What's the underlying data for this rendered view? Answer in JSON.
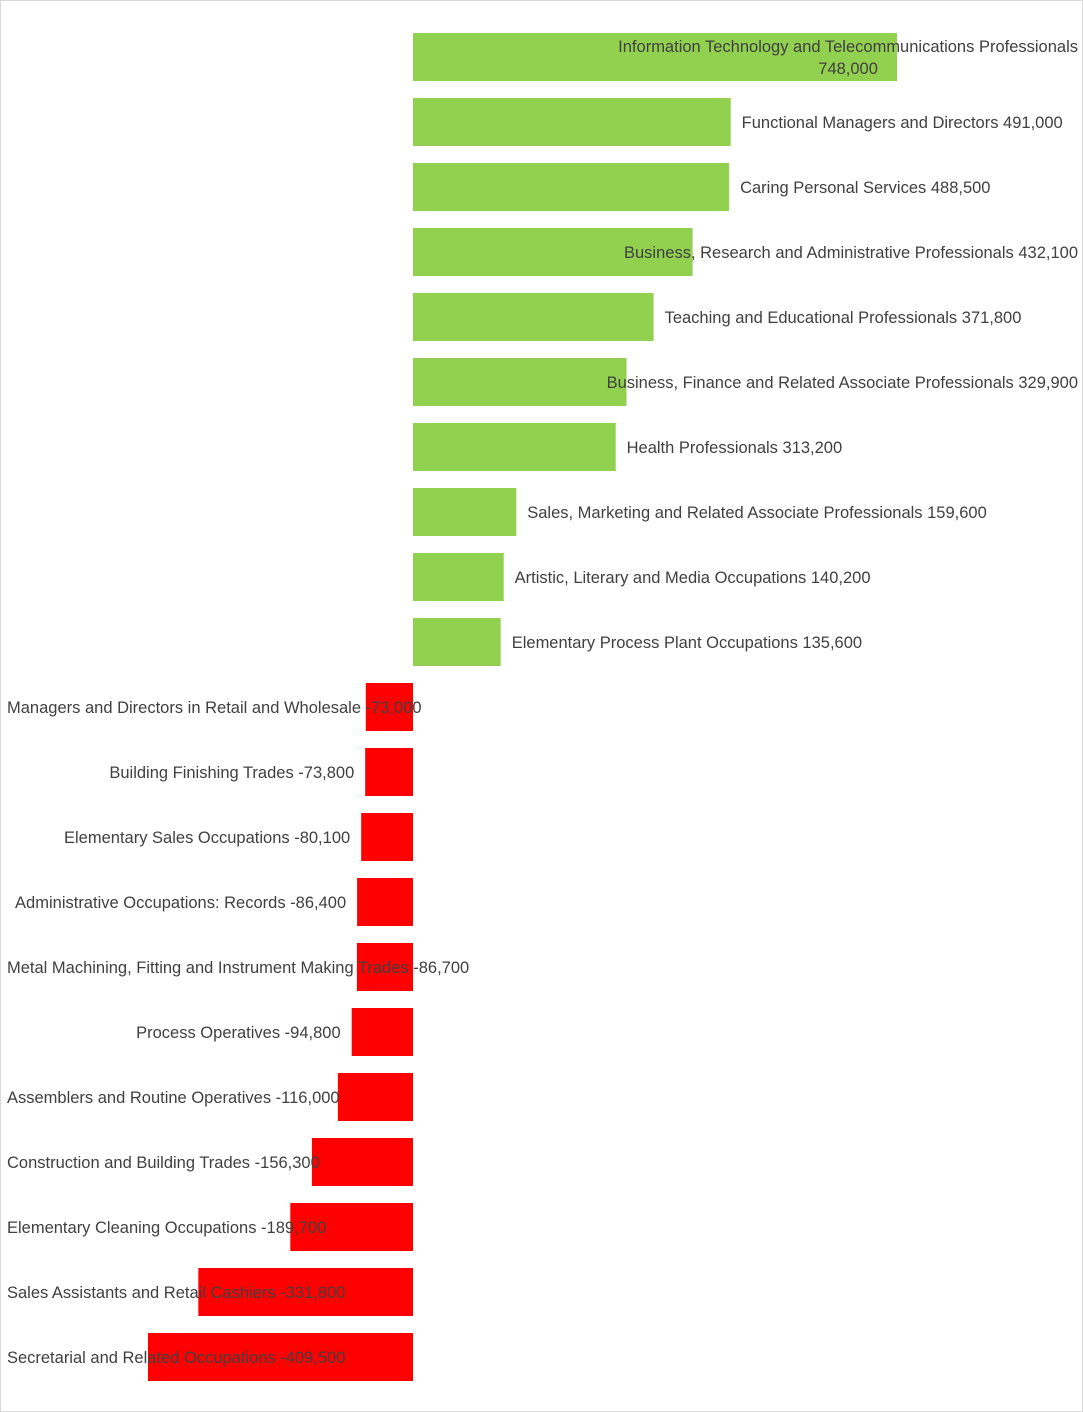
{
  "chart_data": {
    "type": "bar",
    "orientation": "horizontal",
    "title": "",
    "xlabel": "",
    "ylabel": "",
    "grid": false,
    "legend": "none",
    "colors": {
      "positive": "#92d050",
      "negative": "#ff0000",
      "label": "#404040",
      "border": "#d9d9d9"
    },
    "bars": [
      {
        "category": "Information Technology and Telecommunications Professionals",
        "value": 748000,
        "label_lines": [
          "Information Technology and Telecommunications Professionals",
          "748,000"
        ]
      },
      {
        "category": "Functional Managers and Directors",
        "value": 491000,
        "label_lines": [
          "Functional Managers and Directors 491,000"
        ]
      },
      {
        "category": "Caring Personal Services",
        "value": 488500,
        "label_lines": [
          "Caring Personal Services 488,500"
        ]
      },
      {
        "category": "Business, Research and Administrative Professionals",
        "value": 432100,
        "label_lines": [
          "Business, Research and Administrative Professionals 432,100"
        ]
      },
      {
        "category": "Teaching and Educational Professionals",
        "value": 371800,
        "label_lines": [
          "Teaching and Educational Professionals 371,800"
        ]
      },
      {
        "category": "Business, Finance and Related Associate Professionals",
        "value": 329900,
        "label_lines": [
          "Business, Finance and Related Associate Professionals 329,900"
        ]
      },
      {
        "category": "Health Professionals",
        "value": 313200,
        "label_lines": [
          "Health Professionals 313,200"
        ]
      },
      {
        "category": "Sales, Marketing and Related Associate Professionals",
        "value": 159600,
        "label_lines": [
          "Sales, Marketing and Related Associate Professionals 159,600"
        ]
      },
      {
        "category": "Artistic, Literary and Media Occupations",
        "value": 140200,
        "label_lines": [
          "Artistic, Literary and Media Occupations 140,200"
        ]
      },
      {
        "category": "Elementary Process Plant Occupations",
        "value": 135600,
        "label_lines": [
          "Elementary Process Plant Occupations 135,600"
        ]
      },
      {
        "category": "Managers and Directors in Retail and Wholesale",
        "value": -73000,
        "label_lines": [
          "Managers and Directors in Retail and Wholesale -73,000"
        ]
      },
      {
        "category": "Building Finishing Trades",
        "value": -73800,
        "label_lines": [
          "Building Finishing Trades -73,800"
        ]
      },
      {
        "category": "Elementary Sales Occupations",
        "value": -80100,
        "label_lines": [
          "Elementary Sales Occupations -80,100"
        ]
      },
      {
        "category": "Administrative Occupations: Records",
        "value": -86400,
        "label_lines": [
          "Administrative Occupations: Records -86,400"
        ]
      },
      {
        "category": "Metal Machining, Fitting and Instrument Making Trades",
        "value": -86700,
        "label_lines": [
          "Metal Machining, Fitting and Instrument Making Trades -86,700"
        ]
      },
      {
        "category": "Process Operatives",
        "value": -94800,
        "label_lines": [
          "Process Operatives -94,800"
        ]
      },
      {
        "category": "Assemblers and Routine Operatives",
        "value": -116000,
        "label_lines": [
          "Assemblers and Routine Operatives -116,000"
        ]
      },
      {
        "category": "Construction and Building Trades",
        "value": -156300,
        "label_lines": [
          "Construction and Building Trades -156,300"
        ]
      },
      {
        "category": "Elementary Cleaning Occupations",
        "value": -189700,
        "label_lines": [
          "Elementary Cleaning Occupations -189,700"
        ]
      },
      {
        "category": "Sales Assistants and Retail Cashiers",
        "value": -331800,
        "label_lines": [
          "Sales Assistants and Retail Cashiers -331,800"
        ]
      },
      {
        "category": "Secretarial and Related Occupations",
        "value": -409500,
        "label_lines": [
          "Secretarial and Related Occupations -409,500"
        ]
      }
    ]
  }
}
